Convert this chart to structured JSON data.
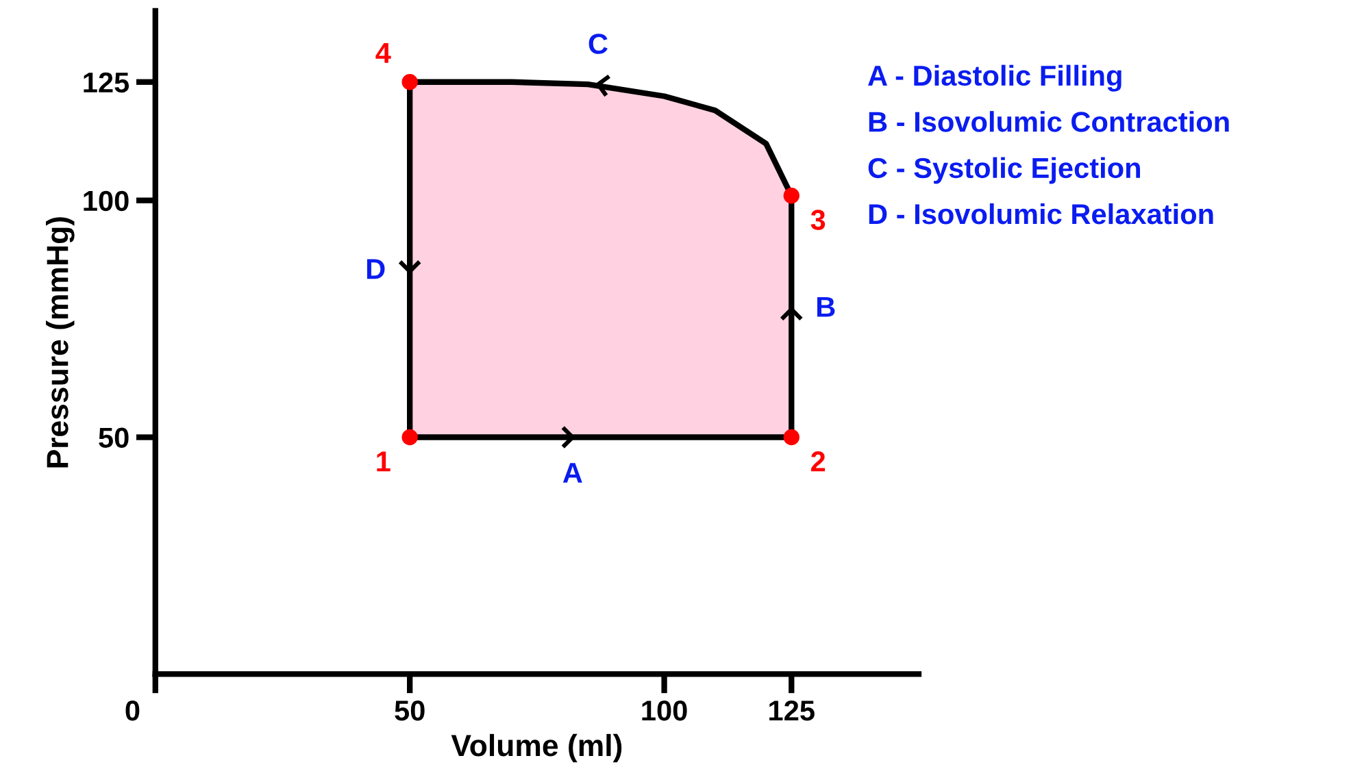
{
  "chart_data": {
    "type": "line",
    "xlabel": "Volume (ml)",
    "ylabel": "Pressure (mmHg)",
    "xlim": [
      0,
      150
    ],
    "ylim": [
      0,
      140
    ],
    "xticks": [
      0,
      50,
      100,
      125
    ],
    "yticks": [
      50,
      100,
      125
    ],
    "grid": false,
    "legend": false,
    "series": [
      {
        "type": "area",
        "color": "#ffd1e1",
        "x": [
          50,
          125,
          125,
          120,
          110,
          100,
          85,
          70,
          50,
          50
        ],
        "values": [
          50,
          50,
          101,
          112,
          119,
          122,
          124.5,
          125,
          125,
          50
        ]
      },
      {
        "type": "scatter",
        "color": "#ff0000",
        "x": [
          50,
          125,
          125,
          50
        ],
        "values": [
          50,
          50,
          101,
          125
        ]
      }
    ],
    "annotations": [
      "A - Diastolic Filling",
      "B - Isovolumic Contraction",
      "C - Systolic Ejection",
      "D - Isovolumic Relaxation",
      {
        "text": "1",
        "x": 50,
        "y": 50
      },
      {
        "text": "2",
        "x": 125,
        "y": 50
      },
      {
        "text": "3",
        "x": 125,
        "y": 101
      },
      {
        "text": "4",
        "x": 50,
        "y": 125
      },
      {
        "text": "A",
        "x": 82,
        "y": 50
      },
      {
        "text": "B",
        "x": 125,
        "y": 77
      },
      {
        "text": "C",
        "x": 87,
        "y": 124.5
      },
      {
        "text": "D",
        "x": 50,
        "y": 85
      }
    ]
  }
}
